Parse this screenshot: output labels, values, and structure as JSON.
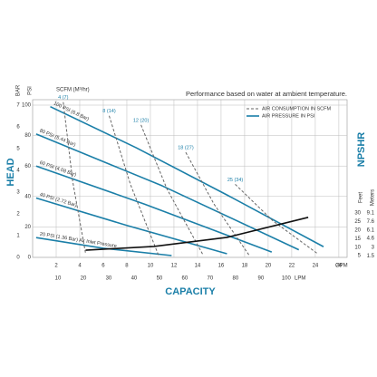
{
  "chart_data": {
    "type": "line",
    "title": "Performance based on water at ambient temperature.",
    "xlabel": "CAPACITY",
    "ylabel": "HEAD",
    "y2label": "NPSHR",
    "air_label": "SCFM (M³/hr)",
    "xunit": "GPM",
    "xlim": [
      0,
      26.7
    ],
    "xticks": [
      2,
      4,
      6,
      8,
      10,
      12,
      14,
      16,
      18,
      20,
      22,
      24,
      26
    ],
    "x2unit": "LPM",
    "x2lim": [
      0,
      124
    ],
    "x2ticks": [
      10,
      20,
      30,
      40,
      50,
      60,
      70,
      80,
      90,
      100
    ],
    "yunit": "PSI",
    "ylim": [
      0,
      100
    ],
    "yticks": [
      0,
      20,
      40,
      60,
      80,
      100
    ],
    "ybarunit": "BAR",
    "ybarlim": [
      0,
      7
    ],
    "ybarticks": [
      0,
      1,
      2,
      3,
      4,
      5,
      6,
      7
    ],
    "y2unit": "Feet",
    "y2lim": [
      4,
      93
    ],
    "y2ticks": [
      5,
      10,
      15,
      20,
      25,
      30
    ],
    "y3unit": "Meters",
    "y3lim": [
      1.22,
      28.3
    ],
    "y3ticks": [
      1.5,
      3,
      4.6,
      6.1,
      7.6,
      9.1
    ],
    "grid": true,
    "legend": [
      {
        "name": "AIR CONSUMPTION IN SCFM",
        "dashed": true,
        "color": "#666666"
      },
      {
        "name": "AIR PRESSURE IN PSI",
        "dashed": false,
        "color": "#1b7fa8"
      }
    ],
    "series": [
      {
        "name": "100 PSI (6.8 Bar)",
        "color": "#1b7fa8",
        "dashed": false,
        "x": [
          1.5,
          8.8,
          16.5,
          24.7
        ],
        "values": [
          99,
          72,
          41,
          7
        ]
      },
      {
        "name": "80 PSI (5.44 Bar)",
        "color": "#1b7fa8",
        "dashed": false,
        "x": [
          0.3,
          11,
          22.6
        ],
        "values": [
          81,
          47,
          5
        ]
      },
      {
        "name": "60 PSI (4.08 Bar)",
        "color": "#1b7fa8",
        "dashed": false,
        "x": [
          0.3,
          9.5,
          20.3
        ],
        "values": [
          60,
          35,
          3.5
        ]
      },
      {
        "name": "40 PSI (2.72 Bar)",
        "color": "#1b7fa8",
        "dashed": false,
        "x": [
          0.3,
          8,
          16.5
        ],
        "values": [
          39,
          21,
          2.4
        ]
      },
      {
        "name": "20 PSI (1.36 Bar) Air Inlet Pressure",
        "color": "#1b7fa8",
        "dashed": false,
        "x": [
          0.3,
          6,
          11.8
        ],
        "values": [
          13,
          6,
          1.2
        ]
      },
      {
        "name": "4 (7)",
        "color": "#666666",
        "dashed": true,
        "x": [
          2.6,
          3.4,
          4.5
        ],
        "values": [
          102,
          50,
          2.4
        ]
      },
      {
        "name": "8 (14)",
        "color": "#666666",
        "dashed": true,
        "x": [
          6.5,
          8.3,
          10.7
        ],
        "values": [
          93,
          48,
          1.2
        ]
      },
      {
        "name": "12 (20)",
        "color": "#666666",
        "dashed": true,
        "x": [
          9.2,
          11.4,
          14.5
        ],
        "values": [
          87,
          45,
          1.2
        ]
      },
      {
        "name": "18 (27)",
        "color": "#666666",
        "dashed": true,
        "x": [
          13,
          15.4,
          18.4
        ],
        "values": [
          69,
          35,
          1.2
        ]
      },
      {
        "name": "25 (34)",
        "color": "#666666",
        "dashed": true,
        "x": [
          17.2,
          20.4,
          24.2
        ],
        "values": [
          48,
          24,
          2.4
        ]
      },
      {
        "color": "#111111",
        "dashed": false,
        "axis": "y2",
        "x": [
          4.5,
          10.3,
          16.5,
          23.4
        ],
        "values": [
          8.2,
          10.4,
          15.7,
          27.4
        ]
      }
    ]
  }
}
